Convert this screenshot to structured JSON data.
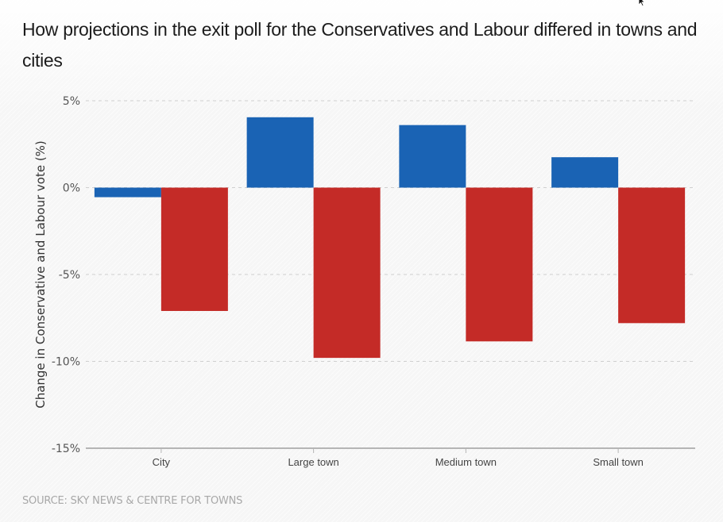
{
  "title": "How projections in the exit poll for the Conservatives and Labour differed in towns and cities",
  "source": "SOURCE: SKY NEWS & CENTRE FOR TOWNS",
  "colors": {
    "conservative": "#1a63b4",
    "labour": "#c42b27",
    "grid": "#cfcfcf",
    "axis": "#b5b5b5"
  },
  "chart_data": {
    "type": "bar",
    "title": "How projections in the exit poll for the Conservatives and Labour differed in towns and cities",
    "xlabel": "",
    "ylabel": "Change in Conservative and Labour vote (%)",
    "categories": [
      "City",
      "Large town",
      "Medium town",
      "Small town"
    ],
    "series": [
      {
        "name": "Conservative",
        "color": "#1a63b4",
        "values": [
          -0.55,
          4.05,
          3.6,
          1.75
        ]
      },
      {
        "name": "Labour",
        "color": "#c42b27",
        "values": [
          -7.1,
          -9.8,
          -8.85,
          -7.8
        ]
      }
    ],
    "ylim": [
      -15,
      5
    ],
    "yticks": [
      5,
      0,
      -5,
      -10,
      -15
    ],
    "ytick_labels": [
      "5%",
      "0%",
      "-5%",
      "-10%",
      "-15%"
    ],
    "grid": true,
    "legend": "none"
  }
}
